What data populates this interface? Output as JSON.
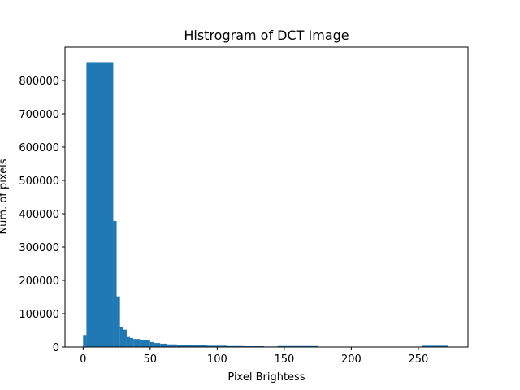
{
  "chart_data": {
    "type": "bar",
    "title": "Histrogram of DCT Image",
    "xlabel": "Pixel Brightess",
    "ylabel": "Num. of pixels",
    "xlim": [
      -13.5,
      287
    ],
    "ylim": [
      0,
      900000
    ],
    "xticks": [
      0,
      50,
      100,
      150,
      200,
      250
    ],
    "yticks": [
      0,
      100000,
      200000,
      300000,
      400000,
      500000,
      600000,
      700000,
      800000
    ],
    "grid": false,
    "bar_color": "#1f77b4",
    "bins": [
      {
        "x0": 0,
        "x1": 2.5,
        "value": 36000
      },
      {
        "x0": 2.5,
        "x1": 22.5,
        "value": 855000
      },
      {
        "x0": 22.5,
        "x1": 25,
        "value": 378000
      },
      {
        "x0": 25,
        "x1": 27.5,
        "value": 152000
      },
      {
        "x0": 27.5,
        "x1": 30,
        "value": 60000
      },
      {
        "x0": 30,
        "x1": 32.5,
        "value": 52000
      },
      {
        "x0": 32.5,
        "x1": 35,
        "value": 30000
      },
      {
        "x0": 35,
        "x1": 37.5,
        "value": 27000
      },
      {
        "x0": 37.5,
        "x1": 42.5,
        "value": 24000
      },
      {
        "x0": 42.5,
        "x1": 50,
        "value": 20000
      },
      {
        "x0": 50,
        "x1": 52.5,
        "value": 15000
      },
      {
        "x0": 52.5,
        "x1": 57.5,
        "value": 12000
      },
      {
        "x0": 57.5,
        "x1": 62.5,
        "value": 10000
      },
      {
        "x0": 62.5,
        "x1": 70,
        "value": 8000
      },
      {
        "x0": 70,
        "x1": 82.5,
        "value": 7000
      },
      {
        "x0": 82.5,
        "x1": 92.5,
        "value": 5000
      },
      {
        "x0": 92.5,
        "x1": 107.5,
        "value": 4000
      },
      {
        "x0": 107.5,
        "x1": 120,
        "value": 3000
      },
      {
        "x0": 120,
        "x1": 135,
        "value": 2500
      },
      {
        "x0": 135,
        "x1": 145,
        "value": 1500
      },
      {
        "x0": 145,
        "x1": 175,
        "value": 3000
      },
      {
        "x0": 175,
        "x1": 252.5,
        "value": 800
      },
      {
        "x0": 252.5,
        "x1": 272.5,
        "value": 4000
      }
    ]
  }
}
